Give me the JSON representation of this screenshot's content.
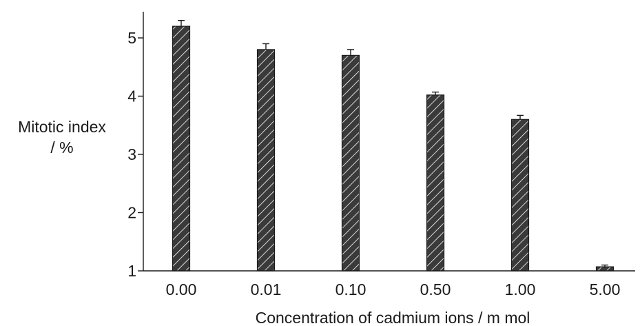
{
  "chart_data": {
    "type": "bar",
    "xlabel": "Concentration of cadmium ions / m mol",
    "ylabel_lines": [
      "Mitotic index",
      "/ %"
    ],
    "categories": [
      "0.00",
      "0.01",
      "0.10",
      "0.50",
      "1.00",
      "5.00"
    ],
    "values": [
      5.2,
      4.8,
      4.7,
      4.02,
      3.6,
      1.07
    ],
    "errors": [
      0.1,
      0.1,
      0.1,
      0.05,
      0.07,
      0.03
    ],
    "ylim": [
      1,
      5.45
    ],
    "yticks": [
      1,
      2,
      3,
      4,
      5
    ],
    "bar_color": "#3a3a3a",
    "hatch": "diagonal white lines",
    "grid": false,
    "legend": "none"
  }
}
